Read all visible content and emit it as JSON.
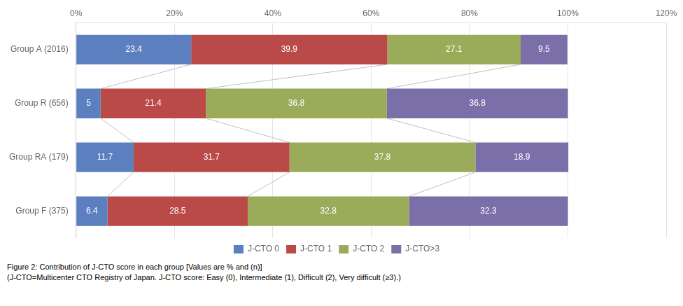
{
  "chart_data": {
    "type": "bar",
    "orientation": "horizontal",
    "stacked": true,
    "data_labels": true,
    "grid": true,
    "legend": "bottom",
    "categories": [
      "Group A (2016)",
      "Group R (656)",
      "Group RA (179)",
      "Group F (375)"
    ],
    "series": [
      {
        "name": "J-CTO 0",
        "color": "#5b7fbf",
        "values": [
          23.4,
          5.0,
          11.7,
          6.4
        ]
      },
      {
        "name": "J-CTO 1",
        "color": "#b94a48",
        "values": [
          39.9,
          21.4,
          31.7,
          28.5
        ]
      },
      {
        "name": "J-CTO 2",
        "color": "#9aab5a",
        "values": [
          27.1,
          36.8,
          37.8,
          32.8
        ]
      },
      {
        "name": "J-CTO>3",
        "color": "#7b6faa",
        "values": [
          9.5,
          36.8,
          18.9,
          32.3
        ]
      }
    ],
    "xlim": [
      0,
      120
    ],
    "xticks": [
      {
        "value": 0,
        "label": "0%"
      },
      {
        "value": 20,
        "label": "20%"
      },
      {
        "value": 40,
        "label": "40%"
      },
      {
        "value": 60,
        "label": "60%"
      },
      {
        "value": 80,
        "label": "80%"
      },
      {
        "value": 100,
        "label": "100%"
      },
      {
        "value": 120,
        "label": "120%"
      }
    ],
    "annotations": [
      "Figure 2: Contribution of J-CTO score in each group [Values are % and (n)]",
      "(J-CTO=Multicenter CTO Registry of Japan. J-CTO score: Easy (0), Intermediate (1), Difficult (2), Very difficult (≥3).)"
    ]
  }
}
